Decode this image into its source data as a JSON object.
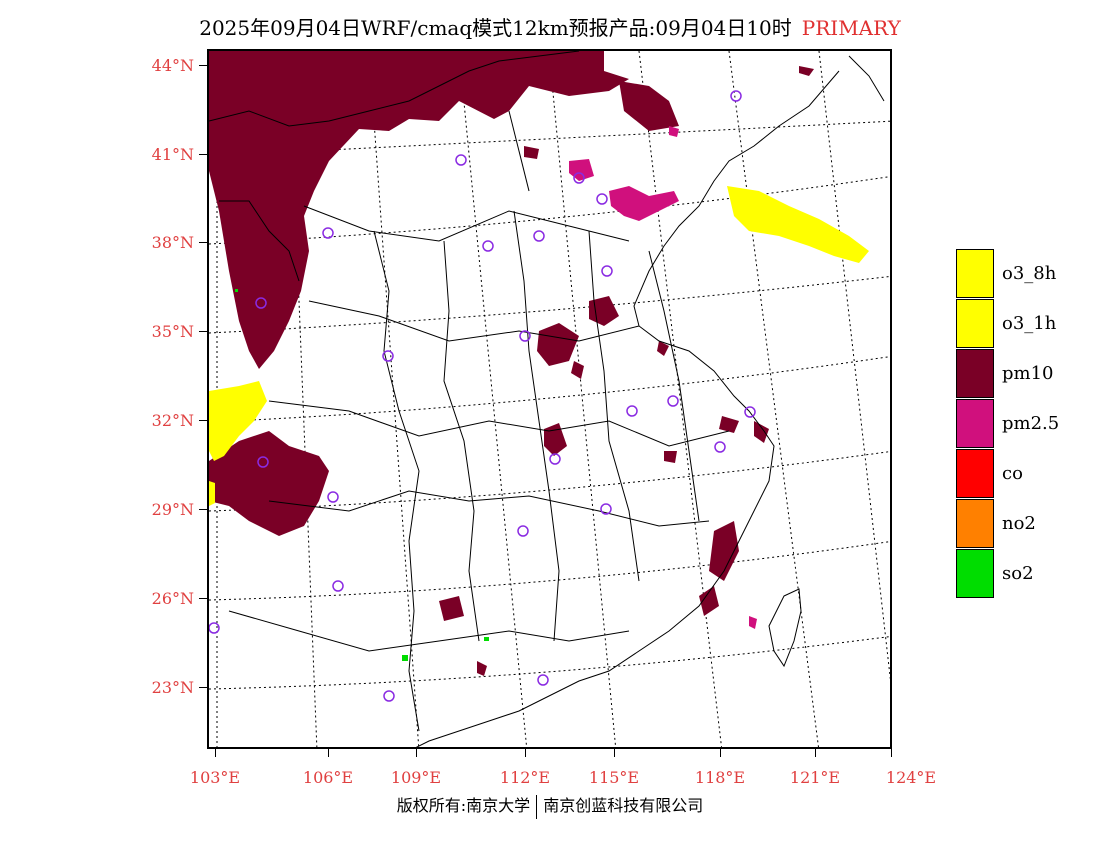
{
  "title": {
    "main": "2025年09月04日WRF/cmaq模式12km预报产品:09月04日10时",
    "tag": "PRIMARY"
  },
  "map": {
    "lat_labels": [
      "44°N",
      "41°N",
      "38°N",
      "35°N",
      "32°N",
      "29°N",
      "26°N",
      "23°N"
    ],
    "lon_labels": [
      "103°E",
      "106°E",
      "109°E",
      "112°E",
      "115°E",
      "118°E",
      "121°E",
      "124°E"
    ],
    "layers": {
      "pm10_color": "#7a0026",
      "pm25_color": "#d0107d",
      "o3_color": "#ffff00",
      "so2_color": "#00dd00",
      "site_marker_color": "#8a2be2",
      "boundary_color": "#000000"
    }
  },
  "legend": {
    "items": [
      {
        "label": "o3_8h",
        "color": "#ffff00"
      },
      {
        "label": "o3_1h",
        "color": "#ffff00"
      },
      {
        "label": "pm10",
        "color": "#7a0026"
      },
      {
        "label": "pm2.5",
        "color": "#d0107d"
      },
      {
        "label": "co",
        "color": "#ff0000"
      },
      {
        "label": "no2",
        "color": "#ff8000"
      },
      {
        "label": "so2",
        "color": "#00dd00"
      }
    ]
  },
  "footer": {
    "left": "版权所有:南京大学",
    "right": "南京创蓝科技有限公司"
  }
}
